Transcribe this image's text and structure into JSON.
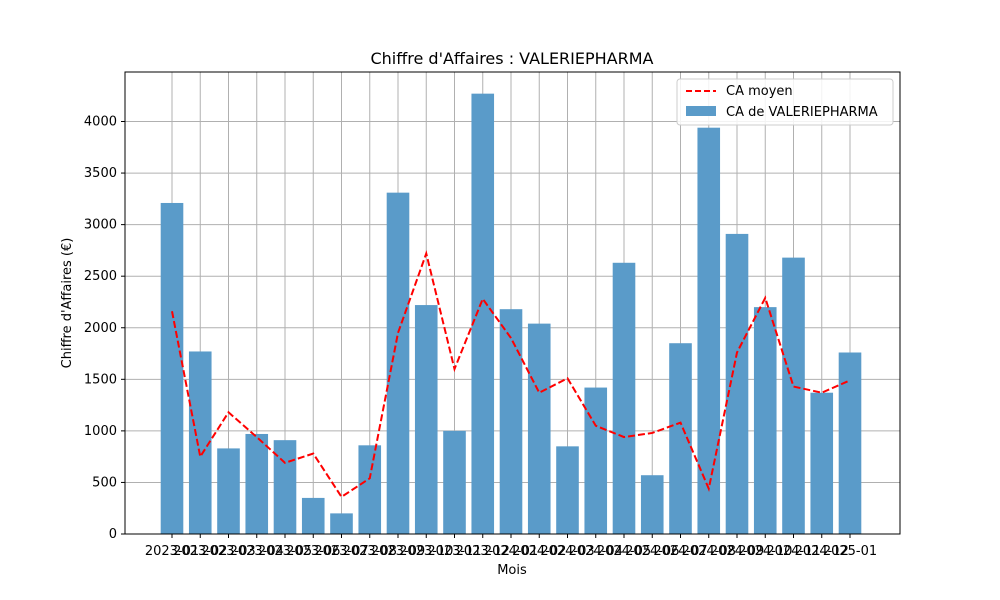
{
  "chart_data": {
    "type": "bar",
    "title": "Chiffre d'Affaires : VALERIEPHARMA",
    "xlabel": "Mois",
    "ylabel": "Chiffre d'Affaires (€)",
    "ylim": [
      0,
      4480
    ],
    "yticks": [
      0,
      500,
      1000,
      1500,
      2000,
      2500,
      3000,
      3500,
      4000
    ],
    "grid": true,
    "legend_position": "top-right",
    "categories": [
      "2023-01",
      "2023-02",
      "2023-03",
      "2023-04",
      "2023-05",
      "2023-06",
      "2023-07",
      "2023-08",
      "2023-09",
      "2023-10",
      "2023-11",
      "2023-12",
      "2024-01",
      "2024-02",
      "2024-03",
      "2024-04",
      "2024-05",
      "2024-06",
      "2024-07",
      "2024-08",
      "2024-09",
      "2024-10",
      "2024-11",
      "2024-12",
      "2025-01"
    ],
    "series": [
      {
        "name": "CA de VALERIEPHARMA",
        "kind": "bar",
        "color": "#5a9bc9",
        "values": [
          3210,
          1770,
          830,
          970,
          910,
          350,
          200,
          860,
          3310,
          2220,
          1000,
          4270,
          2180,
          2040,
          850,
          1420,
          2630,
          570,
          1850,
          3940,
          2910,
          2200,
          2680,
          1370,
          1760
        ]
      },
      {
        "name": "CA moyen",
        "kind": "line",
        "style": "dashed",
        "color": "#ff0000",
        "values": [
          2160,
          750,
          1180,
          940,
          690,
          780,
          360,
          540,
          1950,
          2720,
          1600,
          2280,
          1900,
          1370,
          1510,
          1050,
          940,
          980,
          1080,
          440,
          1760,
          2290,
          1430,
          1370,
          1490
        ]
      }
    ]
  }
}
